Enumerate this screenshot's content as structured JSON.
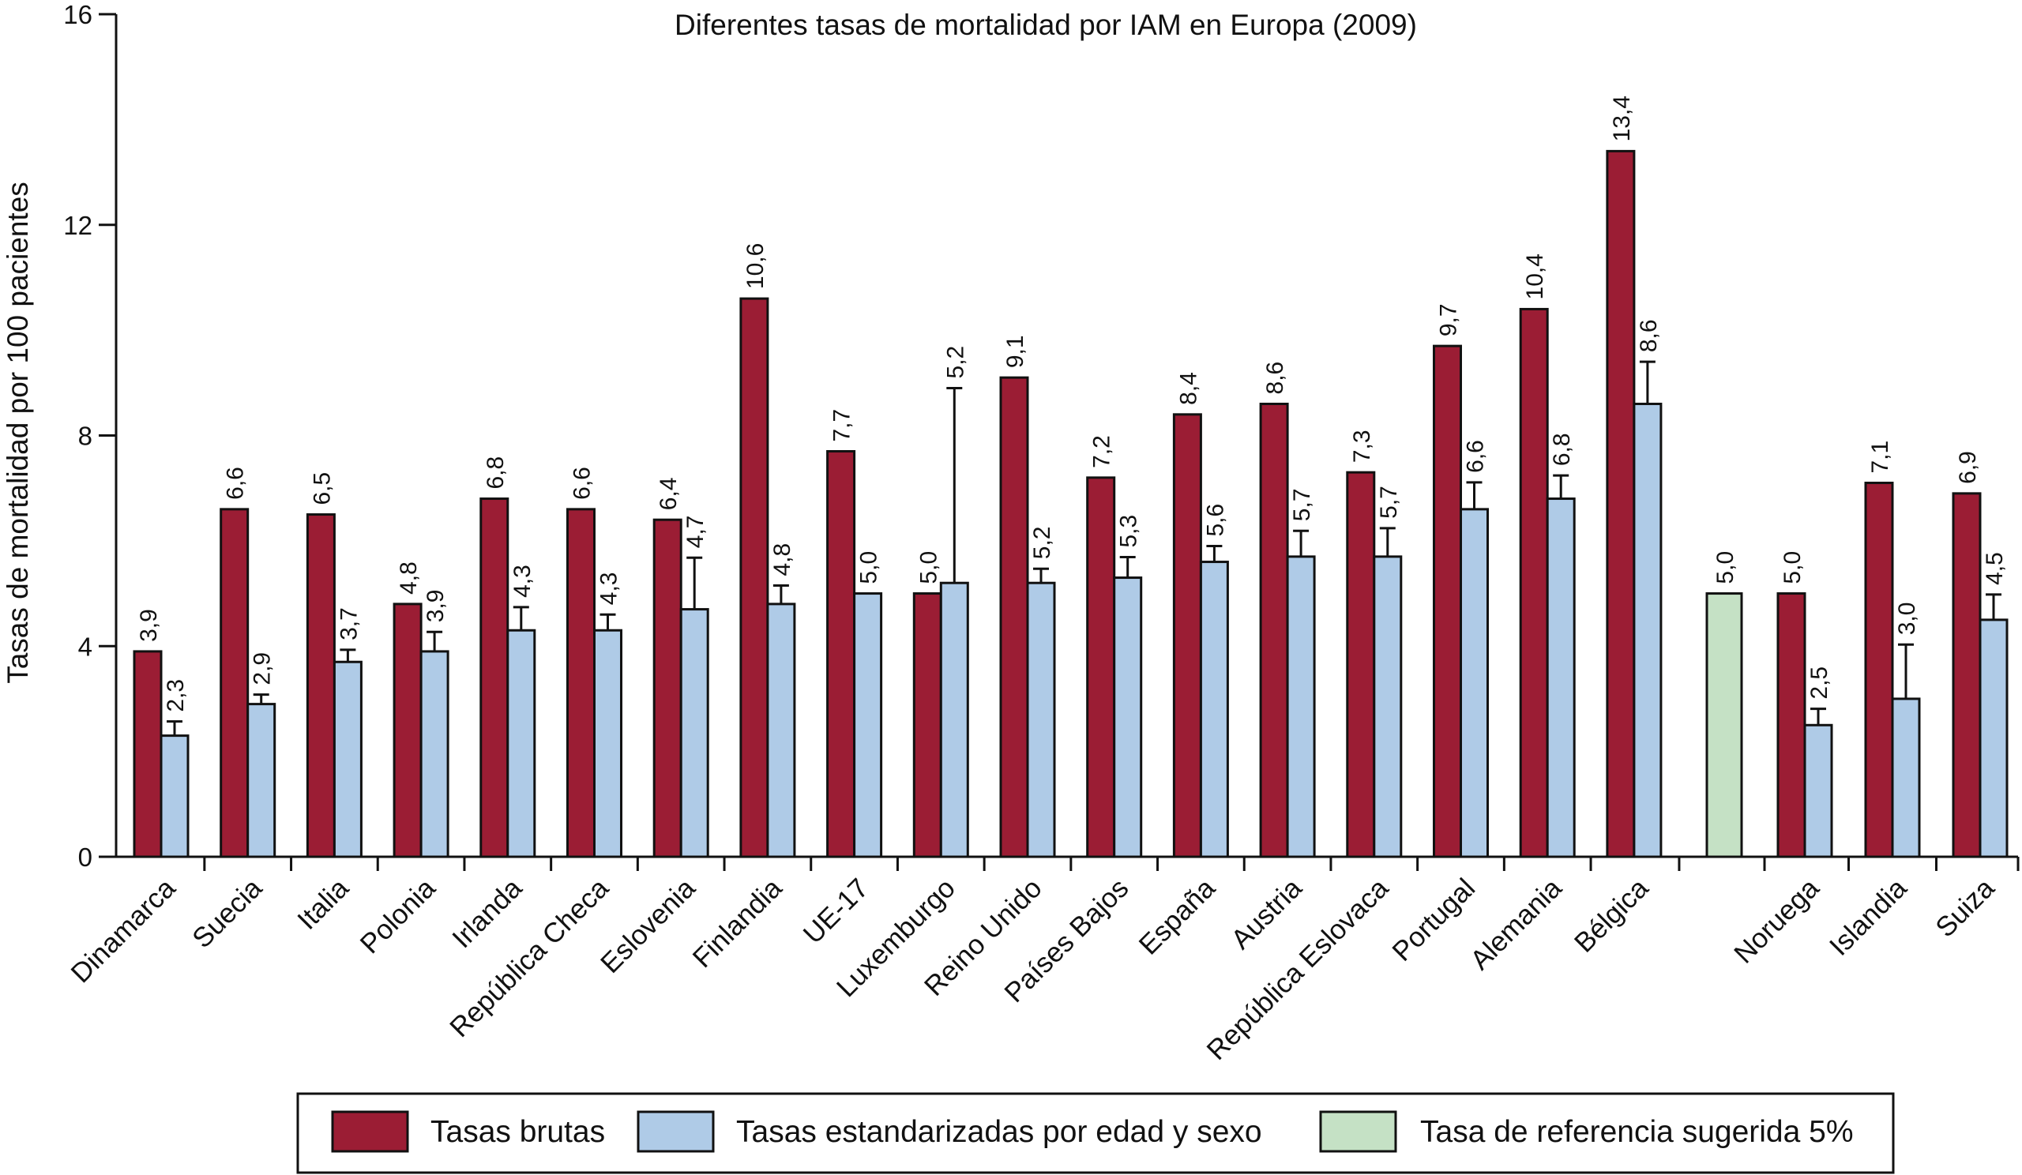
{
  "chart_data": {
    "type": "bar",
    "title": "Diferentes tasas de mortalidad por IAM en Europa (2009)",
    "ylabel": "Tasas de mortalidad por 100 pacientes",
    "xlabel": "",
    "ylim": [
      0,
      16
    ],
    "yticks": [
      0,
      4,
      8,
      12,
      16
    ],
    "grid": false,
    "legend_position": "bottom",
    "categories": [
      "Dinamarca",
      "Suecia",
      "Italia",
      "Polonia",
      "Irlanda",
      "República Checa",
      "Eslovenia",
      "Finlandia",
      "UE-17",
      "Luxemburgo",
      "Reino Unido",
      "Países Bajos",
      "España",
      "Austria",
      "República Eslovaca",
      "Portugal",
      "Alemania",
      "Bélgica",
      "",
      "Noruega",
      "Islandia",
      "Suiza"
    ],
    "series": [
      {
        "name": "Tasas brutas",
        "color": "#9b1d34",
        "values": [
          3.9,
          6.6,
          6.5,
          4.8,
          6.8,
          6.6,
          6.4,
          10.6,
          7.7,
          5.0,
          9.1,
          7.2,
          8.4,
          8.6,
          7.3,
          9.7,
          10.4,
          13.4,
          null,
          5.0,
          7.1,
          6.9
        ],
        "labels": [
          "3,9",
          "6,6",
          "6,5",
          "4,8",
          "6,8",
          "6,6",
          "6,4",
          "10,6",
          "7,7",
          "5,0",
          "9,1",
          "7,2",
          "8,4",
          "8,6",
          "7,3",
          "9,7",
          "10,4",
          "13,4",
          null,
          "5,0",
          "7,1",
          "6,9"
        ]
      },
      {
        "name": "Tasas estandarizadas por edad y sexo",
        "color": "#afcbe7",
        "values": [
          2.3,
          2.9,
          3.7,
          3.9,
          4.3,
          4.3,
          4.7,
          4.8,
          5.0,
          5.2,
          5.2,
          5.3,
          5.6,
          5.7,
          5.7,
          6.6,
          6.8,
          8.6,
          null,
          2.5,
          3.0,
          4.5
        ],
        "labels": [
          "2,3",
          "2,9",
          "3,7",
          "3,9",
          "4,3",
          "4,3",
          "4,7",
          "4,8",
          "5,0",
          "5,2",
          "5,2",
          "5,3",
          "5,6",
          "5,7",
          "5,7",
          "6,6",
          "6,8",
          "8,6",
          null,
          "2,5",
          "3,0",
          "4,5"
        ],
        "error_upper": [
          2.57,
          3.08,
          3.93,
          4.27,
          4.74,
          4.6,
          5.68,
          5.15,
          null,
          8.9,
          5.47,
          5.69,
          5.9,
          6.19,
          6.24,
          7.11,
          7.24,
          9.4,
          null,
          2.81,
          4.03,
          4.98
        ]
      },
      {
        "name": "Tasa de referencia sugerida 5%",
        "color": "#c5e1c5",
        "values": [
          null,
          null,
          null,
          null,
          null,
          null,
          null,
          null,
          null,
          null,
          null,
          null,
          null,
          null,
          null,
          null,
          null,
          null,
          5.0,
          null,
          null,
          null
        ],
        "labels": [
          null,
          null,
          null,
          null,
          null,
          null,
          null,
          null,
          null,
          null,
          null,
          null,
          null,
          null,
          null,
          null,
          null,
          null,
          "5,0",
          null,
          null,
          null
        ]
      }
    ],
    "ytick_labels": [
      "0",
      "4",
      "8",
      "12",
      "16"
    ]
  }
}
